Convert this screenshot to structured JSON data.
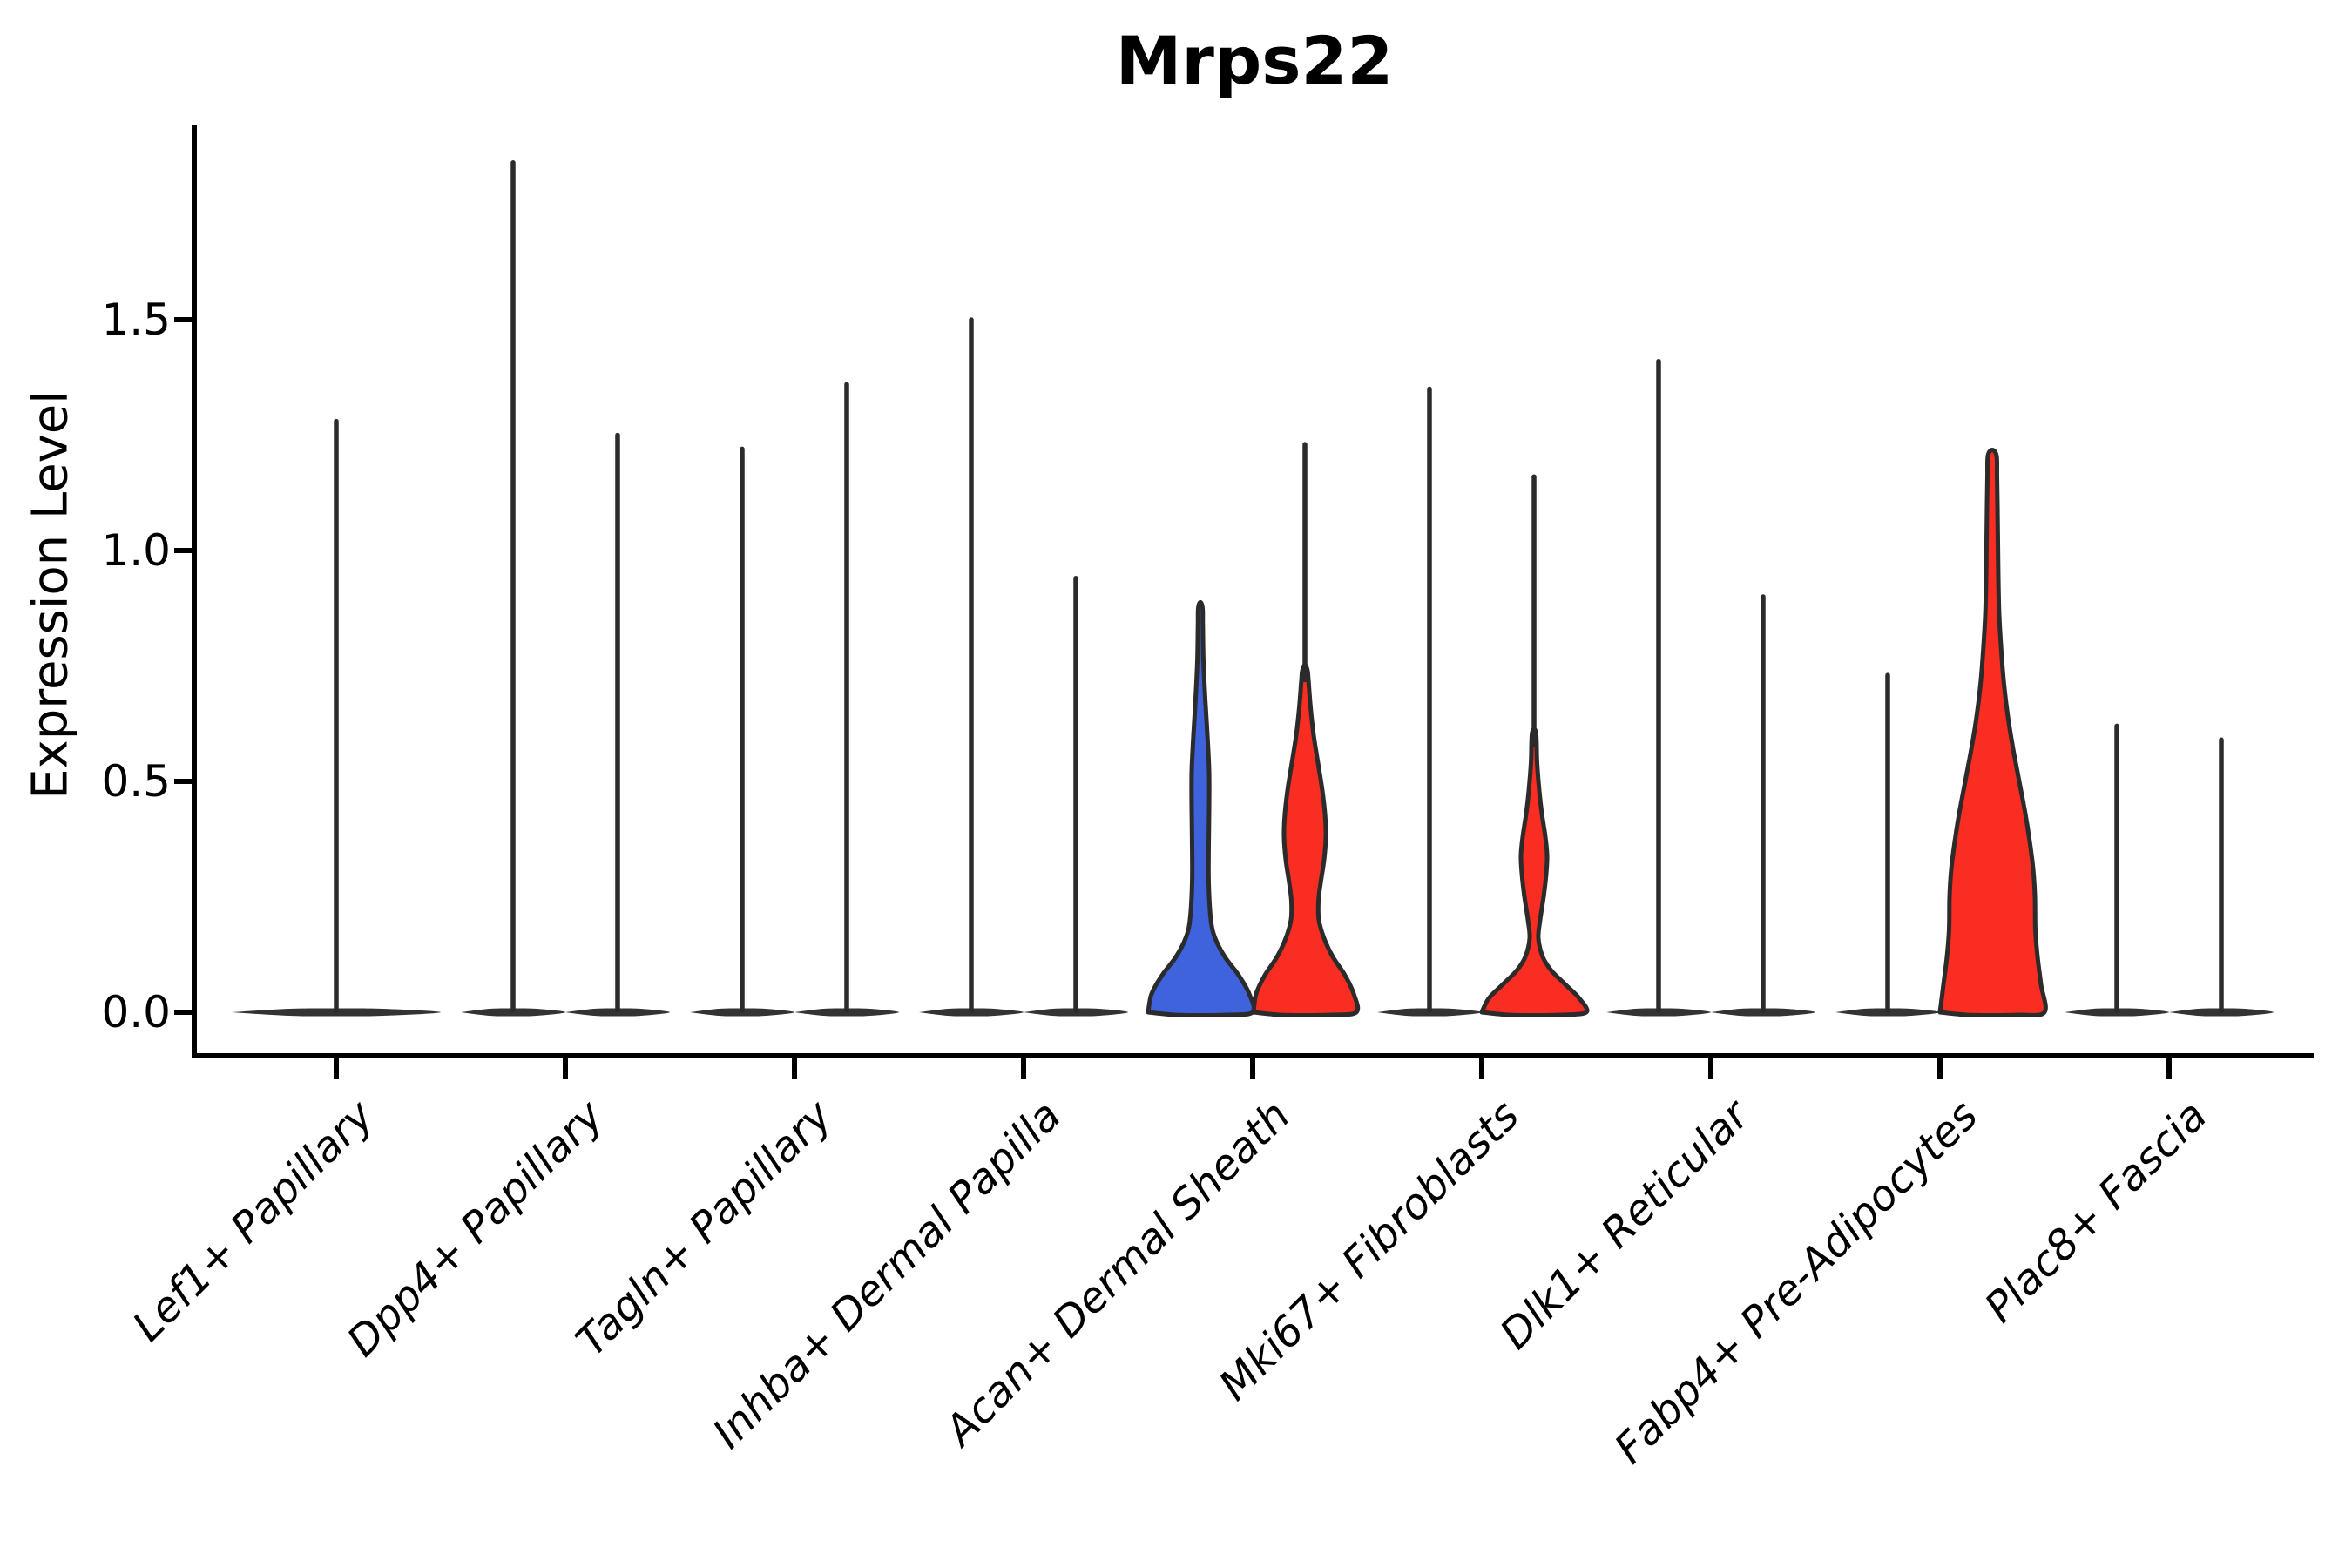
{
  "chart_data": {
    "type": "violin",
    "title": "Mrps22",
    "ylabel": "Expression Level",
    "xlabel": "",
    "grid": false,
    "legend_position": "none",
    "ylim": [
      -0.06,
      1.95
    ],
    "ytick_labels": [
      "0.0",
      "0.5",
      "1.0",
      "1.5"
    ],
    "ytick_values": [
      0.0,
      0.5,
      1.0,
      1.5
    ],
    "categories": [
      "Lef1+ Papillary",
      "Dpp4+ Papillary",
      "Tagln+ Papillary",
      "Inhba+ Dermal Papilla",
      "Acan+ Dermal Sheath",
      "Mki67+ Fibroblasts",
      "Dlk1+ Reticular",
      "Fabp4+ Pre-Adipocytes",
      "Plac8+ Fascia"
    ],
    "colors": {
      "blue": "#3E63DD",
      "red": "#F92D22",
      "outline": "#2B2B2B",
      "base": "#333333",
      "axis": "#000000"
    },
    "violins": [
      {
        "cat": 0,
        "offset": 0,
        "base_hw": 120,
        "fill": null,
        "max": 1.28
      },
      {
        "cat": 1,
        "offset": -60,
        "base_hw": 60,
        "fill": null,
        "max": 1.84
      },
      {
        "cat": 1,
        "offset": 60,
        "base_hw": 60,
        "fill": null,
        "max": 1.25
      },
      {
        "cat": 2,
        "offset": -60,
        "base_hw": 60,
        "fill": null,
        "max": 1.22
      },
      {
        "cat": 2,
        "offset": 60,
        "base_hw": 60,
        "fill": null,
        "max": 1.36
      },
      {
        "cat": 3,
        "offset": -60,
        "base_hw": 60,
        "fill": null,
        "max": 1.5
      },
      {
        "cat": 3,
        "offset": 60,
        "base_hw": 60,
        "fill": null,
        "max": 0.94
      },
      {
        "cat": 4,
        "offset": -60,
        "base_hw": 60,
        "fill": "blue",
        "max": 0.89,
        "profile": [
          [
            0,
            60
          ],
          [
            0.04,
            56
          ],
          [
            0.08,
            44
          ],
          [
            0.12,
            28
          ],
          [
            0.16,
            17
          ],
          [
            0.2,
            12
          ],
          [
            0.28,
            9.5
          ],
          [
            0.36,
            9.5
          ],
          [
            0.44,
            10
          ],
          [
            0.52,
            10
          ],
          [
            0.6,
            8
          ],
          [
            0.68,
            5.5
          ],
          [
            0.76,
            3.5
          ],
          [
            0.84,
            2.8
          ],
          [
            0.875,
            2.5
          ]
        ]
      },
      {
        "cat": 4,
        "offset": 60,
        "base_hw": 60,
        "fill": "red",
        "max": 1.23,
        "profile": [
          [
            0,
            59
          ],
          [
            0.04,
            56
          ],
          [
            0.08,
            46
          ],
          [
            0.12,
            32
          ],
          [
            0.16,
            22
          ],
          [
            0.2,
            16
          ],
          [
            0.24,
            15.5
          ],
          [
            0.28,
            18
          ],
          [
            0.33,
            22
          ],
          [
            0.38,
            24
          ],
          [
            0.43,
            23
          ],
          [
            0.48,
            20
          ],
          [
            0.54,
            15
          ],
          [
            0.6,
            10
          ],
          [
            0.66,
            6.5
          ],
          [
            0.72,
            4
          ],
          [
            0.74,
            3
          ]
        ]
      },
      {
        "cat": 5,
        "offset": -60,
        "base_hw": 60,
        "fill": null,
        "max": 1.35
      },
      {
        "cat": 5,
        "offset": 60,
        "base_hw": 60,
        "fill": "red",
        "max": 1.16,
        "profile": [
          [
            0,
            60
          ],
          [
            0.03,
            52
          ],
          [
            0.06,
            36
          ],
          [
            0.09,
            20
          ],
          [
            0.12,
            10
          ],
          [
            0.16,
            5
          ],
          [
            0.2,
            7
          ],
          [
            0.25,
            11
          ],
          [
            0.3,
            14
          ],
          [
            0.34,
            15
          ],
          [
            0.38,
            13
          ],
          [
            0.43,
            9
          ],
          [
            0.48,
            6
          ],
          [
            0.54,
            3.5
          ],
          [
            0.6,
            2.5
          ]
        ]
      },
      {
        "cat": 6,
        "offset": -60,
        "base_hw": 60,
        "fill": null,
        "max": 1.41
      },
      {
        "cat": 6,
        "offset": 60,
        "base_hw": 60,
        "fill": null,
        "max": 0.9
      },
      {
        "cat": 7,
        "offset": -60,
        "base_hw": 60,
        "fill": null,
        "max": 0.73
      },
      {
        "cat": 7,
        "offset": 60,
        "base_hw": 60,
        "fill": "red",
        "max": 1.21,
        "profile": [
          [
            0,
            60
          ],
          [
            0.06,
            56
          ],
          [
            0.12,
            52
          ],
          [
            0.18,
            49.5
          ],
          [
            0.25,
            49
          ],
          [
            0.31,
            47
          ],
          [
            0.37,
            43
          ],
          [
            0.43,
            38
          ],
          [
            0.5,
            31
          ],
          [
            0.57,
            24
          ],
          [
            0.64,
            18
          ],
          [
            0.71,
            13.5
          ],
          [
            0.78,
            10.5
          ],
          [
            0.86,
            8
          ],
          [
            0.94,
            7
          ],
          [
            1.02,
            6.5
          ],
          [
            1.1,
            6
          ],
          [
            1.16,
            5.5
          ],
          [
            1.205,
            5
          ]
        ]
      },
      {
        "cat": 8,
        "offset": -60,
        "base_hw": 60,
        "fill": null,
        "max": 0.62
      },
      {
        "cat": 8,
        "offset": 60,
        "base_hw": 60,
        "fill": null,
        "max": 0.59
      }
    ]
  }
}
